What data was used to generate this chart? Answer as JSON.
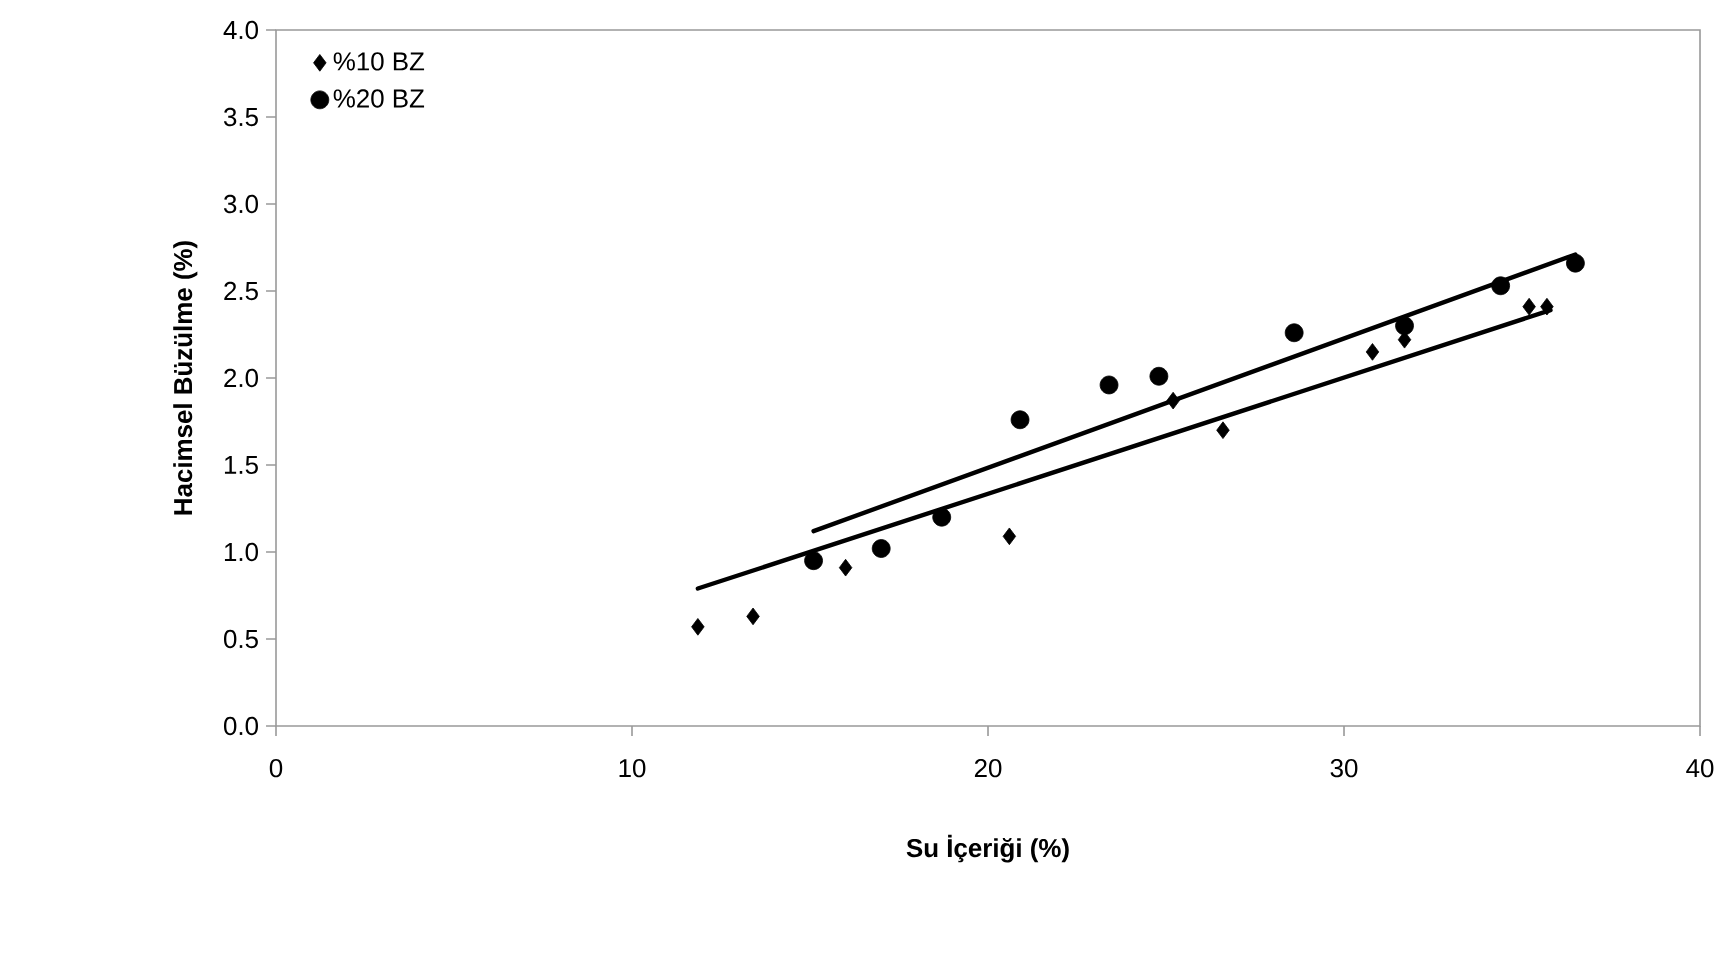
{
  "chart_data": {
    "type": "scatter",
    "xlabel": "Su İçeriği (%)",
    "ylabel": "Hacimsel Büzülme (%)",
    "xlim": [
      0,
      40
    ],
    "xticks": [
      0,
      10,
      20,
      30,
      40
    ],
    "ylim": [
      0,
      4
    ],
    "yticks": [
      {
        "value": 0,
        "label": "0.0"
      },
      {
        "value": 0.5,
        "label": "0.5"
      },
      {
        "value": 1,
        "label": "1.0"
      },
      {
        "value": 1.5,
        "label": "1.5"
      },
      {
        "value": 2,
        "label": "2.0"
      },
      {
        "value": 2.5,
        "label": "2.5"
      },
      {
        "value": 3,
        "label": "3.0"
      },
      {
        "value": 3.5,
        "label": "3.5"
      },
      {
        "value": 4,
        "label": "4.0"
      }
    ],
    "grid": false,
    "legend": "top left",
    "series": [
      {
        "name": "%10 BZ",
        "color": "#000000",
        "marker": "diamond",
        "x": [
          11.85,
          13.4,
          16.0,
          20.6,
          25.2,
          26.6,
          30.8,
          31.7,
          35.2,
          35.7
        ],
        "values": [
          0.57,
          0.63,
          0.91,
          1.09,
          1.87,
          1.7,
          2.15,
          2.22,
          2.41,
          2.41
        ]
      },
      {
        "name": "%20 BZ",
        "color": "#000000",
        "marker": "circle",
        "x": [
          15.1,
          17.0,
          18.7,
          20.9,
          23.4,
          24.8,
          28.6,
          31.7,
          34.4,
          36.5
        ],
        "values": [
          0.95,
          1.02,
          1.2,
          1.76,
          1.96,
          2.01,
          2.26,
          2.3,
          2.53,
          2.66
        ]
      },
      {
        "type": "line",
        "color": "#000000",
        "marker": "none",
        "x": [
          11.85,
          35.8
        ],
        "values": [
          0.79,
          2.39
        ]
      },
      {
        "type": "line",
        "color": "#000000",
        "marker": "none",
        "x": [
          15.1,
          36.5
        ],
        "values": [
          1.12,
          2.71
        ]
      }
    ]
  }
}
